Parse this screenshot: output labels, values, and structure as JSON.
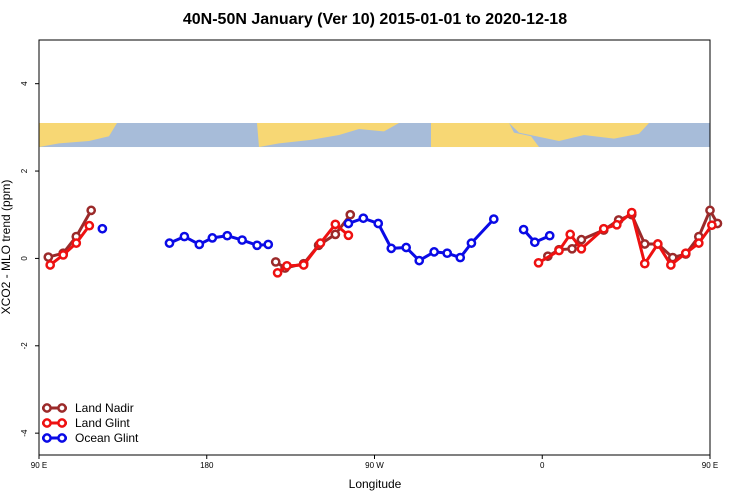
{
  "chart_data": {
    "type": "line",
    "title": "40N-50N January (Ver 10)   2015-01-01 to 2020-12-18",
    "xlabel": "Longitude",
    "ylabel": "XCO2 - MLO trend (ppm)",
    "xlim": [
      90,
      450
    ],
    "ylim": [
      -4.5,
      5
    ],
    "xticks": [
      {
        "value": 90,
        "label": "90 E"
      },
      {
        "value": 180,
        "label": "180"
      },
      {
        "value": 270,
        "label": "90 W"
      },
      {
        "value": 360,
        "label": "0"
      },
      {
        "value": 450,
        "label": "90 E"
      },
      {
        "value": 540,
        "label": "180"
      }
    ],
    "yticks": [
      {
        "value": -4,
        "label": "-4"
      },
      {
        "value": -2,
        "label": "-2"
      },
      {
        "value": 0,
        "label": "0"
      },
      {
        "value": 2,
        "label": "2"
      },
      {
        "value": 4,
        "label": "4"
      }
    ],
    "legend_position": "bottom-left",
    "map_strip": {
      "y_range": [
        2.55,
        3.1
      ],
      "land_color": "#f7d774",
      "ocean_color": "#a7bcd9"
    },
    "series": [
      {
        "name": "Land Nadir",
        "color": "#9b2a2a",
        "segments": [
          [
            [
              95,
              0.03
            ],
            [
              103,
              0.12
            ],
            [
              110,
              0.5
            ],
            [
              118,
              1.1
            ]
          ],
          [
            [
              217,
              -0.08
            ],
            [
              222,
              -0.22
            ],
            [
              232,
              -0.12
            ],
            [
              240,
              0.3
            ],
            [
              249,
              0.55
            ],
            [
              257,
              1.0
            ]
          ],
          [
            [
              363,
              0.05
            ],
            [
              369,
              0.2
            ],
            [
              376,
              0.22
            ],
            [
              381,
              0.43
            ],
            [
              393,
              0.65
            ],
            [
              401,
              0.88
            ],
            [
              408,
              1.0
            ],
            [
              415,
              0.33
            ],
            [
              422,
              0.33
            ],
            [
              430,
              0.02
            ],
            [
              437,
              0.1
            ],
            [
              444,
              0.5
            ],
            [
              450,
              1.1
            ],
            [
              454,
              0.8
            ]
          ]
        ]
      },
      {
        "name": "Land Glint",
        "color": "#ee1111",
        "segments": [
          [
            [
              96,
              -0.15
            ],
            [
              103,
              0.08
            ],
            [
              110,
              0.35
            ],
            [
              117,
              0.75
            ]
          ],
          [
            [
              218,
              -0.33
            ],
            [
              223,
              -0.17
            ],
            [
              232,
              -0.15
            ],
            [
              241,
              0.35
            ],
            [
              249,
              0.78
            ],
            [
              256,
              0.53
            ]
          ],
          [
            [
              358,
              -0.1
            ],
            [
              369,
              0.18
            ],
            [
              375,
              0.55
            ],
            [
              381,
              0.22
            ],
            [
              393,
              0.68
            ],
            [
              400,
              0.77
            ],
            [
              408,
              1.05
            ],
            [
              415,
              -0.12
            ],
            [
              422,
              0.33
            ],
            [
              429,
              -0.15
            ],
            [
              437,
              0.12
            ],
            [
              444,
              0.35
            ],
            [
              451,
              0.76
            ]
          ]
        ]
      },
      {
        "name": "Ocean Glint",
        "color": "#0a0ae6",
        "segments": [
          [
            [
              124,
              0.68
            ]
          ],
          [
            [
              160,
              0.35
            ],
            [
              168,
              0.5
            ],
            [
              176,
              0.32
            ],
            [
              183,
              0.47
            ],
            [
              191,
              0.52
            ],
            [
              199,
              0.42
            ],
            [
              207,
              0.3
            ],
            [
              213,
              0.32
            ]
          ],
          [
            [
              256,
              0.8
            ],
            [
              264,
              0.92
            ],
            [
              272,
              0.8
            ],
            [
              279,
              0.23
            ],
            [
              287,
              0.25
            ],
            [
              294,
              -0.05
            ],
            [
              302,
              0.15
            ],
            [
              309,
              0.12
            ],
            [
              316,
              0.02
            ],
            [
              322,
              0.35
            ],
            [
              334,
              0.9
            ]
          ],
          [
            [
              350,
              0.66
            ],
            [
              356,
              0.37
            ],
            [
              364,
              0.52
            ]
          ]
        ]
      }
    ]
  }
}
